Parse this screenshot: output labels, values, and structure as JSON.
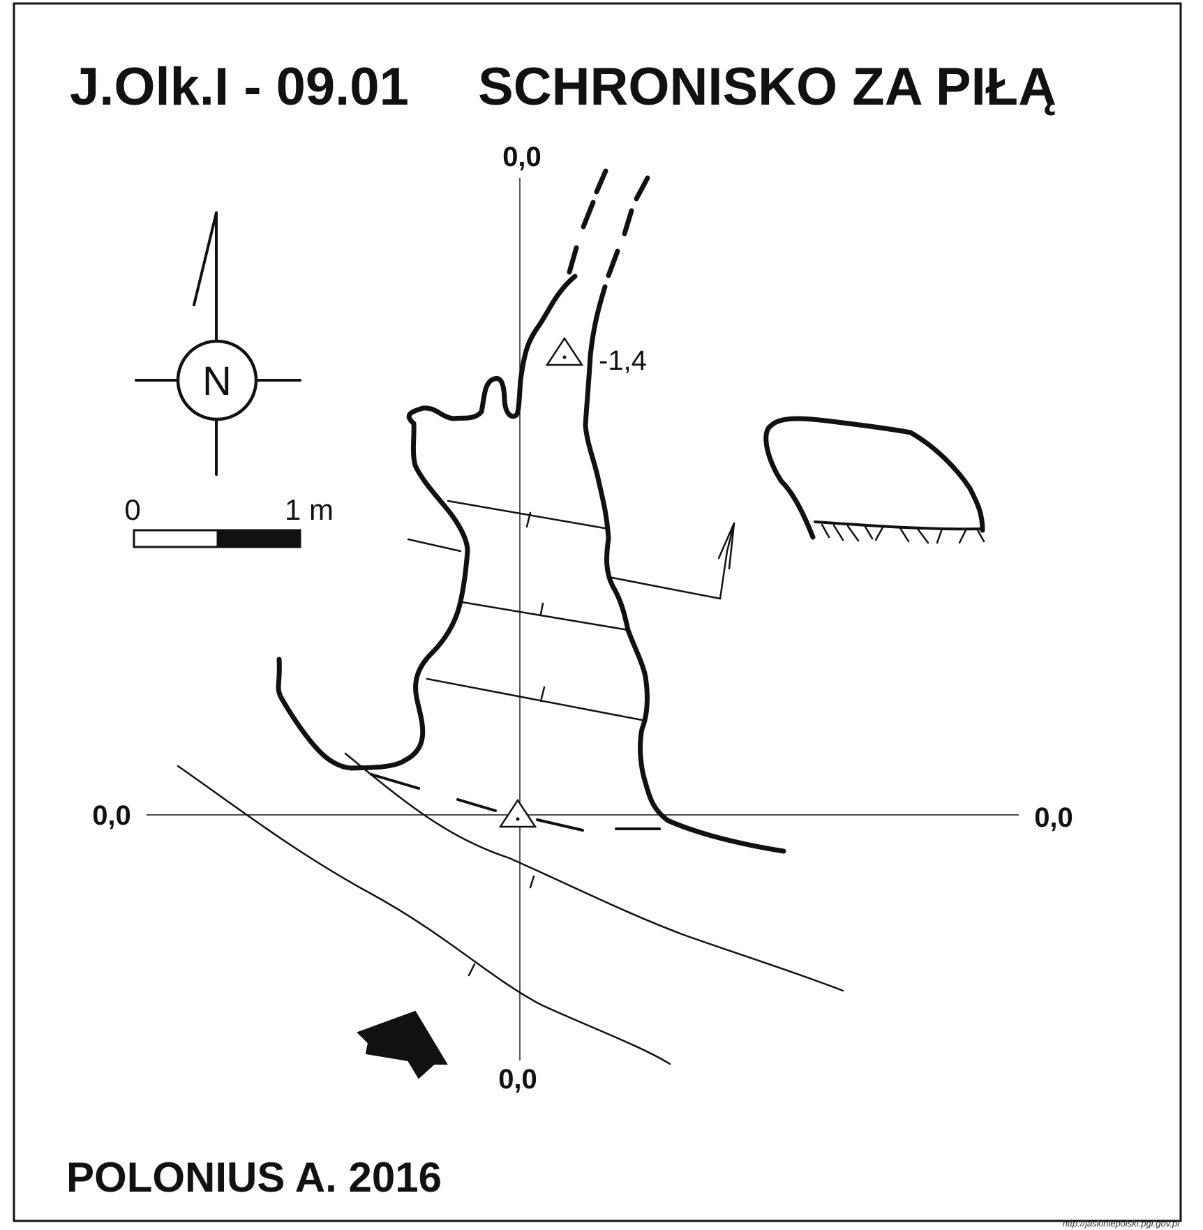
{
  "title": {
    "code": "J.Olk.I - 09.01",
    "name": "SCHRONISKO ZA PIŁĄ"
  },
  "north_symbol": {
    "letter": "N",
    "icon": "north-arrow-icon"
  },
  "scale_bar": {
    "start_label": "0",
    "end_label": "1 m",
    "length_m": 1
  },
  "reference_coordinates": {
    "top": "0,0",
    "left": "0,0",
    "right": "0,0",
    "bottom": "0,0"
  },
  "survey_points": [
    {
      "id": "entrance-station",
      "depth_label": ""
    },
    {
      "id": "inner-station",
      "depth_label": "-1,4"
    }
  ],
  "author": "POLONIUS A.  2016",
  "credit": "http://jaskiniepolski.pgi.gov.pl",
  "colors": {
    "ink": "#111111",
    "background": "#ffffff"
  }
}
